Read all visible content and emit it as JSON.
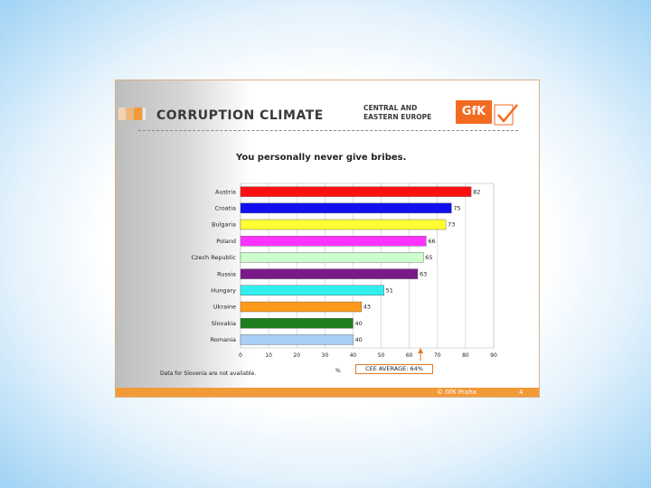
{
  "header": {
    "title": "CORRUPTION CLIMATE",
    "subtitle_line1": "CENTRAL AND",
    "subtitle_line2": "EASTERN EUROPE",
    "logo_text": "GfK"
  },
  "footer": {
    "copyright": "© GfK Praha",
    "page_number": "4"
  },
  "footnote": "Data for Slovenia are not available.",
  "percent_label": "%",
  "average_label": "CEE AVERAGE: 64%",
  "colors": {
    "footer_bar": "#f39a38",
    "logo_orange": "#f26b21",
    "average_line": "#e07b2a"
  },
  "chart_data": {
    "type": "bar",
    "orientation": "horizontal",
    "title": "You personally never give bribes.",
    "categories": [
      "Austria",
      "Croatia",
      "Bulgaria",
      "Poland",
      "Czech Republic",
      "Russia",
      "Hungary",
      "Ukraine",
      "Slovakia",
      "Romania"
    ],
    "values": [
      82,
      75,
      73,
      66,
      65,
      63,
      51,
      43,
      40,
      40
    ],
    "colors": [
      "#ff1010",
      "#1010ee",
      "#ffff33",
      "#ff33ff",
      "#ccffcc",
      "#7a1a88",
      "#33eeee",
      "#ff9a1a",
      "#1f7f1f",
      "#a8cff5"
    ],
    "xlim": [
      0,
      90
    ],
    "xticks": [
      0,
      10,
      20,
      30,
      40,
      50,
      60,
      70,
      80,
      90
    ],
    "xlabel": "%",
    "reference_line": {
      "value": 64,
      "label": "CEE AVERAGE: 64%"
    },
    "grid": true
  }
}
